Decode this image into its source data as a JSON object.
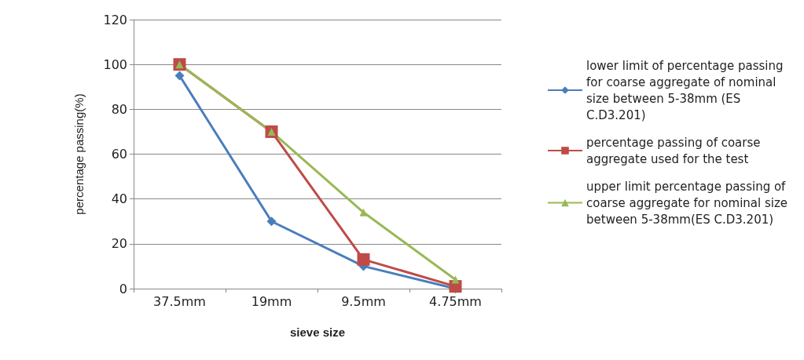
{
  "chart_data": {
    "type": "line",
    "xlabel": "sieve size",
    "ylabel": "percentage passing(%)",
    "categories": [
      "37.5mm",
      "19mm",
      "9.5mm",
      "4.75mm"
    ],
    "series": [
      {
        "name": "lower limit of percentage passing for coarse aggregate of nominal size between 5-38mm (ES C.D3.201)",
        "color": "#4a7ebb",
        "marker": "diamond",
        "values": [
          95,
          30,
          10,
          0
        ]
      },
      {
        "name": "percentage passing of coarse aggregate used for the test",
        "color": "#be4b48",
        "marker": "square",
        "values": [
          100,
          70,
          13,
          1
        ]
      },
      {
        "name": "upper limit percentage passing of coarse aggregate for nominal size between 5-38mm(ES C.D3.201)",
        "color": "#98b954",
        "marker": "triangle",
        "values": [
          100,
          70,
          34,
          4
        ]
      }
    ],
    "ylim": [
      0,
      120
    ],
    "yticks": [
      0,
      20,
      40,
      60,
      80,
      100,
      120
    ],
    "grid": "y",
    "legend": "right"
  }
}
